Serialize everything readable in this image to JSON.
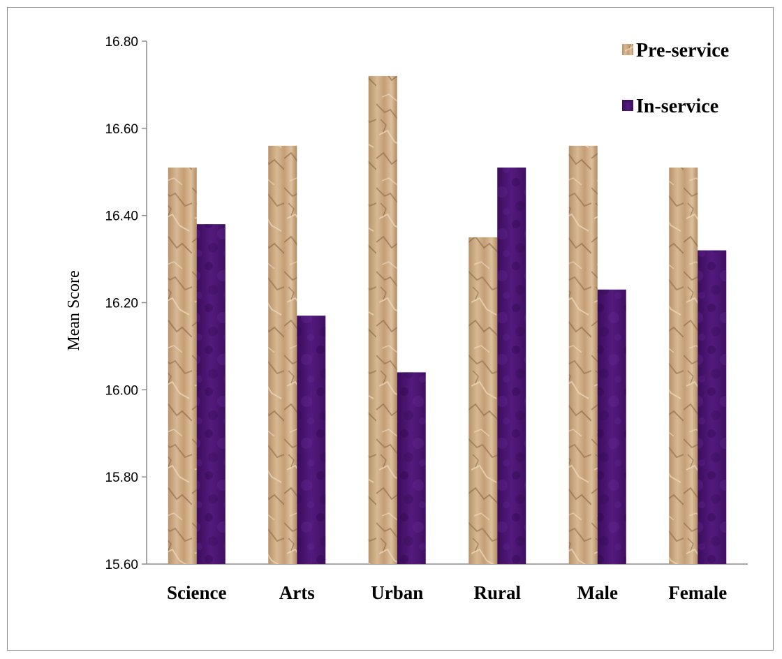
{
  "chart_data": {
    "type": "bar",
    "title": "",
    "xlabel": "",
    "ylabel": "Mean Score",
    "ylim": [
      15.6,
      16.8
    ],
    "yticks": [
      "15.60",
      "15.80",
      "16.00",
      "16.20",
      "16.40",
      "16.60",
      "16.80"
    ],
    "categories": [
      "Science",
      "Arts",
      "Urban",
      "Rural",
      "Male",
      "Female"
    ],
    "series": [
      {
        "name": "Pre-service",
        "values": [
          16.51,
          16.56,
          16.72,
          16.35,
          16.56,
          16.51
        ],
        "color": "#c9a67e",
        "texture": "crumpled-paper"
      },
      {
        "name": "In-service",
        "values": [
          16.38,
          16.17,
          16.04,
          16.51,
          16.23,
          16.32
        ],
        "color": "#4a1570",
        "texture": "mottled-purple"
      }
    ],
    "grid": false,
    "legend_position": "top-right"
  }
}
